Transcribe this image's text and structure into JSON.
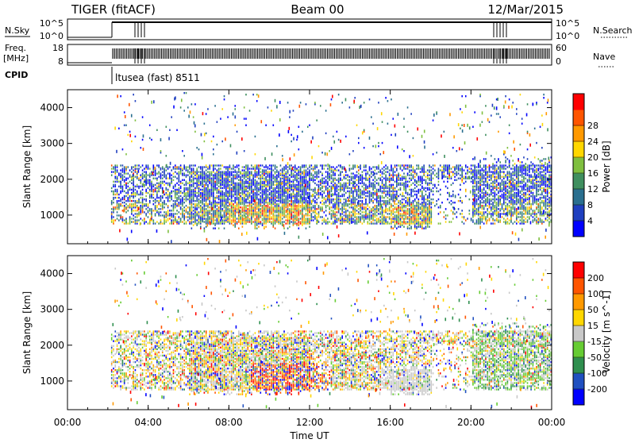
{
  "header": {
    "radar": "TIGER (fitACF)",
    "beam": "Beam 00",
    "date": "12/Mar/2015"
  },
  "status_panels": {
    "nsky_label": "N.Sky",
    "freq_label_1": "Freq.",
    "freq_label_2": "[MHz]",
    "cpid_label": "CPID",
    "nsearch_label": "N.Search",
    "nave_label": "Nave",
    "nsky_ticks": [
      "10^5",
      "10^0"
    ],
    "nsearch_ticks": [
      "10^5",
      "10^0"
    ],
    "freq_ticks": [
      "18",
      "8"
    ],
    "nave_ticks": [
      "60",
      "0"
    ],
    "cpid_text": "ltusea (fast) 8511"
  },
  "chart_data": [
    {
      "type": "heatmap",
      "name": "power",
      "ylabel": "Slant Range [km]",
      "y_ticks": [
        "1000",
        "2000",
        "3000",
        "4000"
      ],
      "ylim": [
        200,
        4500
      ],
      "xlim": [
        0,
        24
      ],
      "colorbar": {
        "label": "Power [dB]",
        "ticks": [
          "4",
          "8",
          "12",
          "16",
          "20",
          "24",
          "28"
        ],
        "colors": [
          "#0000ff",
          "#1f3fbf",
          "#2a6f8f",
          "#3f8f5f",
          "#7fbf3f",
          "#ffd700",
          "#ff9900",
          "#ff5500",
          "#ff0000"
        ]
      }
    },
    {
      "type": "heatmap",
      "name": "velocity",
      "ylabel": "Slant Range [km]",
      "y_ticks": [
        "1000",
        "2000",
        "3000",
        "4000"
      ],
      "ylim": [
        200,
        4500
      ],
      "xlim": [
        0,
        24
      ],
      "xlabel": "Time UT",
      "x_ticks": [
        "00:00",
        "04:00",
        "08:00",
        "12:00",
        "16:00",
        "20:00",
        "00:00"
      ],
      "colorbar": {
        "label": "Velocity [m s^-1]",
        "ticks": [
          "200",
          "100",
          "50",
          "15",
          "-15",
          "-50",
          "-100",
          "-200"
        ],
        "colors": [
          "#0000ff",
          "#2050c0",
          "#2f8f4f",
          "#66cc33",
          "#c8c8c8",
          "#ffd700",
          "#ff9900",
          "#ff5500",
          "#ff0000"
        ]
      }
    }
  ]
}
